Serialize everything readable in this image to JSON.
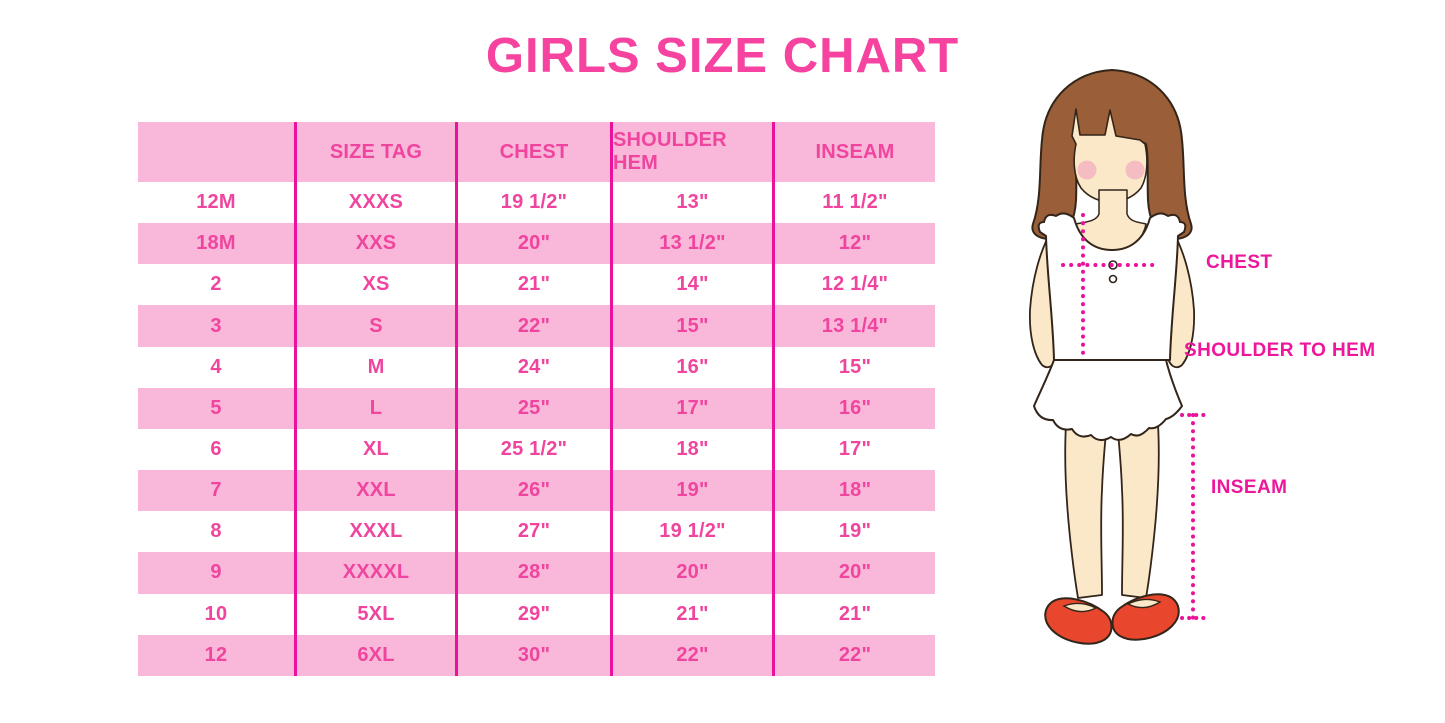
{
  "page": {
    "title": "GIRLS SIZE CHART"
  },
  "colors": {
    "title_pink": "#F5439F",
    "table_text_pink": "#F0459E",
    "band_pink": "#F9B7DA",
    "divider_magenta": "#EA129B",
    "label_magenta": "#EE169A",
    "dotted_magenta": "#EA129B",
    "hair_brown": "#9A5F38",
    "skin_tan": "#FBE8C8",
    "blush_pink": "#F2A9BE",
    "shoe_red": "#E8472E",
    "outline_dark": "#33251A"
  },
  "chart_data": {
    "type": "table",
    "title": "GIRLS SIZE CHART",
    "columns": [
      "",
      "SIZE TAG",
      "CHEST",
      "SHOULDER HEM",
      "INSEAM"
    ],
    "rows": [
      [
        "12M",
        "XXXS",
        "19 1/2\"",
        "13\"",
        "11 1/2\""
      ],
      [
        "18M",
        "XXS",
        "20\"",
        "13 1/2\"",
        "12\""
      ],
      [
        "2",
        "XS",
        "21\"",
        "14\"",
        "12 1/4\""
      ],
      [
        "3",
        "S",
        "22\"",
        "15\"",
        "13 1/4\""
      ],
      [
        "4",
        "M",
        "24\"",
        "16\"",
        "15\""
      ],
      [
        "5",
        "L",
        "25\"",
        "17\"",
        "16\""
      ],
      [
        "6",
        "XL",
        "25 1/2\"",
        "18\"",
        "17\""
      ],
      [
        "7",
        "XXL",
        "26\"",
        "19\"",
        "18\""
      ],
      [
        "8",
        "XXXL",
        "27\"",
        "19 1/2\"",
        "19\""
      ],
      [
        "9",
        "XXXXL",
        "28\"",
        "20\"",
        "20\""
      ],
      [
        "10",
        "5XL",
        "29\"",
        "21\"",
        "21\""
      ],
      [
        "12",
        "6XL",
        "30\"",
        "22\"",
        "22\""
      ]
    ],
    "annotations": [
      "CHEST",
      "SHOULDER TO HEM",
      "INSEAM"
    ],
    "legend_position": "none",
    "grid": "vertical magenta dividers, alternating white/pink row bands"
  }
}
